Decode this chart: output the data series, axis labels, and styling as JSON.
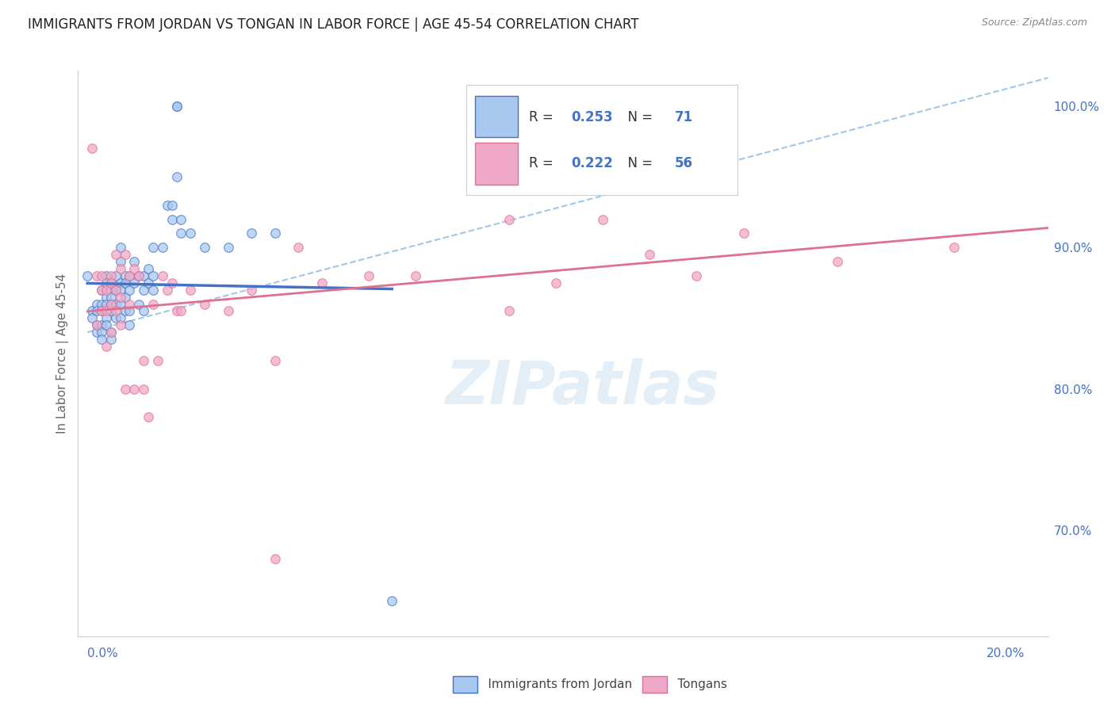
{
  "title": "IMMIGRANTS FROM JORDAN VS TONGAN IN LABOR FORCE | AGE 45-54 CORRELATION CHART",
  "source": "Source: ZipAtlas.com",
  "ylabel": "In Labor Force | Age 45-54",
  "ylim": [
    0.625,
    1.025
  ],
  "xlim": [
    -0.002,
    0.205
  ],
  "yticks": [
    0.7,
    0.8,
    0.9,
    1.0
  ],
  "ytick_labels": [
    "70.0%",
    "80.0%",
    "90.0%",
    "100.0%"
  ],
  "jordan_x": [
    0.0,
    0.001,
    0.001,
    0.002,
    0.002,
    0.002,
    0.002,
    0.003,
    0.003,
    0.003,
    0.003,
    0.003,
    0.003,
    0.004,
    0.004,
    0.004,
    0.004,
    0.004,
    0.004,
    0.005,
    0.005,
    0.005,
    0.005,
    0.005,
    0.005,
    0.005,
    0.006,
    0.006,
    0.006,
    0.006,
    0.007,
    0.007,
    0.007,
    0.007,
    0.007,
    0.007,
    0.008,
    0.008,
    0.008,
    0.008,
    0.009,
    0.009,
    0.009,
    0.009,
    0.01,
    0.01,
    0.011,
    0.011,
    0.012,
    0.012,
    0.012,
    0.013,
    0.013,
    0.014,
    0.014,
    0.014,
    0.016,
    0.017,
    0.018,
    0.018,
    0.019,
    0.019,
    0.019,
    0.02,
    0.02,
    0.022,
    0.025,
    0.03,
    0.035,
    0.04,
    0.065
  ],
  "jordan_y": [
    0.88,
    0.855,
    0.85,
    0.86,
    0.855,
    0.845,
    0.84,
    0.87,
    0.86,
    0.855,
    0.845,
    0.84,
    0.835,
    0.88,
    0.875,
    0.865,
    0.86,
    0.85,
    0.845,
    0.875,
    0.87,
    0.865,
    0.86,
    0.855,
    0.84,
    0.835,
    0.88,
    0.87,
    0.86,
    0.85,
    0.9,
    0.89,
    0.875,
    0.87,
    0.86,
    0.85,
    0.88,
    0.875,
    0.865,
    0.855,
    0.88,
    0.87,
    0.855,
    0.845,
    0.89,
    0.875,
    0.88,
    0.86,
    0.88,
    0.87,
    0.855,
    0.885,
    0.875,
    0.9,
    0.88,
    0.87,
    0.9,
    0.93,
    0.93,
    0.92,
    1.0,
    1.0,
    0.95,
    0.92,
    0.91,
    0.91,
    0.9,
    0.9,
    0.91,
    0.91,
    0.65
  ],
  "tongan_x": [
    0.001,
    0.002,
    0.002,
    0.003,
    0.003,
    0.003,
    0.004,
    0.004,
    0.004,
    0.005,
    0.005,
    0.005,
    0.005,
    0.006,
    0.006,
    0.006,
    0.007,
    0.007,
    0.007,
    0.008,
    0.008,
    0.009,
    0.009,
    0.01,
    0.01,
    0.011,
    0.012,
    0.012,
    0.013,
    0.014,
    0.015,
    0.016,
    0.017,
    0.018,
    0.019,
    0.02,
    0.022,
    0.025,
    0.03,
    0.035,
    0.04,
    0.045,
    0.05,
    0.06,
    0.07,
    0.085,
    0.09,
    0.1,
    0.11,
    0.12,
    0.13,
    0.14,
    0.16,
    0.185,
    0.09,
    0.04
  ],
  "tongan_y": [
    0.97,
    0.88,
    0.845,
    0.88,
    0.87,
    0.855,
    0.87,
    0.855,
    0.83,
    0.88,
    0.875,
    0.86,
    0.84,
    0.895,
    0.87,
    0.855,
    0.885,
    0.865,
    0.845,
    0.895,
    0.8,
    0.88,
    0.86,
    0.885,
    0.8,
    0.88,
    0.82,
    0.8,
    0.78,
    0.86,
    0.82,
    0.88,
    0.87,
    0.875,
    0.855,
    0.855,
    0.87,
    0.86,
    0.855,
    0.87,
    0.82,
    0.9,
    0.875,
    0.88,
    0.88,
    0.95,
    0.92,
    0.875,
    0.92,
    0.895,
    0.88,
    0.91,
    0.89,
    0.9,
    0.855,
    0.68
  ],
  "jordan_scatter_color": "#a8c8f0",
  "tongan_scatter_color": "#f0a8c8",
  "jordan_line_color": "#4472c4",
  "tongan_line_color": "#e07090",
  "diagonal_color": "#8ab8e8",
  "grid_color": "#e8e8e8",
  "watermark_text": "ZIPatlas",
  "watermark_color": "#c8dff0",
  "jordan_R": "0.253",
  "jordan_N": "71",
  "tongan_R": "0.222",
  "tongan_N": "56"
}
